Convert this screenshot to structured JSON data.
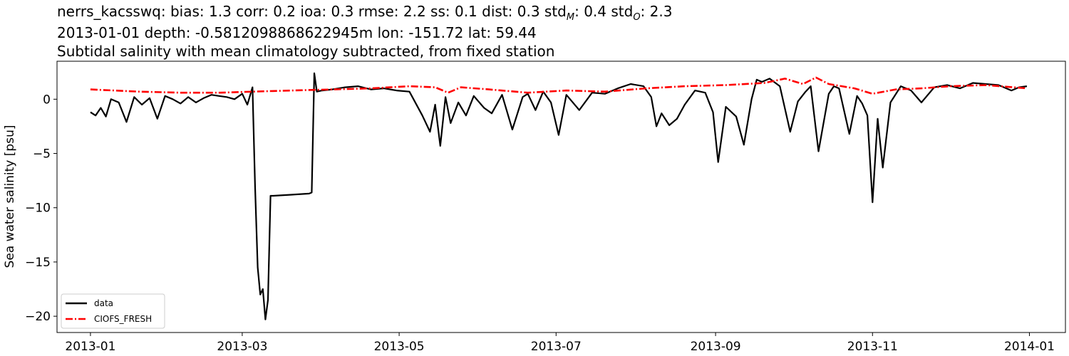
{
  "titles": {
    "line1_prefix": "nerrs_kacsswq: bias: 1.3  corr: 0.2  ioa: 0.3  rmse: 2.2  ss: 0.1  dist: 0.3  std",
    "line1_sub_m": "M",
    "line1_mid": ": 0.4  std",
    "line1_sub_o": "O",
    "line1_end": ": 2.3",
    "line2": "2013-01-01 depth: -0.5812098868622945m lon: -151.72 lat: 59.44",
    "line3": "Subtidal salinity with mean climatology subtracted, from fixed station"
  },
  "chart_data": {
    "type": "line",
    "ylabel": "Sea water salinity [psu]",
    "xlabel": "",
    "ylim": [
      -21.5,
      3.5
    ],
    "xlim": [
      "2012-12-19",
      "2014-01-15"
    ],
    "y_ticks": [
      0,
      -5,
      -10,
      -15,
      -20
    ],
    "y_tick_labels": [
      "0",
      "−5",
      "−10",
      "−15",
      "−20"
    ],
    "x_ticks": [
      "2013-01-01",
      "2013-03-01",
      "2013-05-01",
      "2013-07-01",
      "2013-09-01",
      "2013-11-01",
      "2014-01-01"
    ],
    "x_tick_labels": [
      "2013-01",
      "2013-03",
      "2013-05",
      "2013-07",
      "2013-09",
      "2013-11",
      "2014-01"
    ],
    "grid": false,
    "legend": "lower-left",
    "series": [
      {
        "name": "data",
        "color": "#000000",
        "style": "solid",
        "x": [
          "2013-01-01",
          "2013-01-03",
          "2013-01-05",
          "2013-01-07",
          "2013-01-09",
          "2013-01-12",
          "2013-01-15",
          "2013-01-18",
          "2013-01-21",
          "2013-01-24",
          "2013-01-27",
          "2013-01-30",
          "2013-02-02",
          "2013-02-05",
          "2013-02-08",
          "2013-02-11",
          "2013-02-14",
          "2013-02-17",
          "2013-02-20",
          "2013-02-23",
          "2013-02-26",
          "2013-03-01",
          "2013-03-03",
          "2013-03-05",
          "2013-03-06",
          "2013-03-07",
          "2013-03-08",
          "2013-03-09",
          "2013-03-10",
          "2013-03-11",
          "2013-03-12",
          "2013-03-13",
          "2013-03-20",
          "2013-03-27",
          "2013-03-28",
          "2013-03-29",
          "2013-03-30",
          "2013-04-01",
          "2013-04-05",
          "2013-04-10",
          "2013-04-15",
          "2013-04-20",
          "2013-04-25",
          "2013-04-30",
          "2013-05-05",
          "2013-05-10",
          "2013-05-13",
          "2013-05-15",
          "2013-05-17",
          "2013-05-19",
          "2013-05-21",
          "2013-05-24",
          "2013-05-27",
          "2013-05-30",
          "2013-06-03",
          "2013-06-06",
          "2013-06-10",
          "2013-06-14",
          "2013-06-18",
          "2013-06-20",
          "2013-06-23",
          "2013-06-26",
          "2013-06-29",
          "2013-07-02",
          "2013-07-05",
          "2013-07-10",
          "2013-07-15",
          "2013-07-20",
          "2013-07-25",
          "2013-07-30",
          "2013-08-04",
          "2013-08-07",
          "2013-08-09",
          "2013-08-11",
          "2013-08-14",
          "2013-08-17",
          "2013-08-20",
          "2013-08-24",
          "2013-08-28",
          "2013-08-31",
          "2013-09-02",
          "2013-09-05",
          "2013-09-09",
          "2013-09-12",
          "2013-09-15",
          "2013-09-17",
          "2013-09-19",
          "2013-09-22",
          "2013-09-26",
          "2013-09-30",
          "2013-10-03",
          "2013-10-06",
          "2013-10-08",
          "2013-10-11",
          "2013-10-15",
          "2013-10-17",
          "2013-10-19",
          "2013-10-23",
          "2013-10-26",
          "2013-10-28",
          "2013-10-30",
          "2013-11-01",
          "2013-11-03",
          "2013-11-05",
          "2013-11-08",
          "2013-11-12",
          "2013-11-16",
          "2013-11-20",
          "2013-11-25",
          "2013-11-30",
          "2013-12-05",
          "2013-12-10",
          "2013-12-15",
          "2013-12-20",
          "2013-12-25",
          "2013-12-28",
          "2013-12-31"
        ],
        "y": [
          -1.2,
          -1.5,
          -0.8,
          -1.6,
          0.0,
          -0.3,
          -2.1,
          0.2,
          -0.5,
          0.1,
          -1.8,
          0.3,
          0.0,
          -0.4,
          0.2,
          -0.3,
          0.1,
          0.4,
          0.3,
          0.2,
          0.0,
          0.5,
          -0.5,
          1.1,
          -8.0,
          -15.5,
          -18.0,
          -17.5,
          -20.3,
          -18.5,
          -8.9,
          -8.9,
          -8.8,
          -8.7,
          -8.6,
          2.4,
          0.7,
          0.8,
          0.9,
          1.1,
          1.2,
          0.9,
          1.0,
          0.8,
          0.7,
          -1.5,
          -3.0,
          -0.5,
          -4.3,
          0.2,
          -2.2,
          -0.3,
          -1.5,
          0.3,
          -0.8,
          -1.3,
          0.4,
          -2.8,
          0.2,
          0.5,
          -1.0,
          0.7,
          -0.3,
          -3.3,
          0.4,
          -1.0,
          0.6,
          0.5,
          1.0,
          1.4,
          1.2,
          0.2,
          -2.5,
          -1.3,
          -2.4,
          -1.8,
          -0.5,
          0.8,
          0.6,
          -1.2,
          -5.8,
          -0.7,
          -1.6,
          -4.2,
          0.0,
          1.8,
          1.6,
          1.9,
          1.2,
          -3.0,
          -0.2,
          0.7,
          1.2,
          -4.8,
          0.5,
          1.2,
          1.0,
          -3.2,
          0.3,
          -0.4,
          -1.5,
          -9.5,
          -1.8,
          -6.3,
          -0.3,
          1.2,
          0.8,
          -0.3,
          1.1,
          1.3,
          1.0,
          1.5,
          1.4,
          1.3,
          0.8,
          1.1,
          1.2
        ]
      },
      {
        "name": "CIOFS_FRESH",
        "color": "#ff0000",
        "style": "dash-dot",
        "x": [
          "2013-01-01",
          "2013-01-20",
          "2013-02-05",
          "2013-02-20",
          "2013-03-05",
          "2013-03-20",
          "2013-04-05",
          "2013-04-20",
          "2013-05-05",
          "2013-05-15",
          "2013-05-20",
          "2013-05-25",
          "2013-06-05",
          "2013-06-20",
          "2013-07-05",
          "2013-07-20",
          "2013-08-05",
          "2013-08-20",
          "2013-09-05",
          "2013-09-20",
          "2013-09-28",
          "2013-10-05",
          "2013-10-10",
          "2013-10-15",
          "2013-10-25",
          "2013-11-01",
          "2013-11-10",
          "2013-11-20",
          "2013-12-01",
          "2013-12-15",
          "2013-12-31"
        ],
        "y": [
          0.9,
          0.7,
          0.6,
          0.6,
          0.7,
          0.8,
          0.9,
          1.0,
          1.2,
          1.1,
          0.6,
          1.1,
          0.9,
          0.6,
          0.8,
          0.7,
          1.0,
          1.2,
          1.3,
          1.5,
          1.9,
          1.4,
          2.0,
          1.4,
          1.0,
          0.5,
          0.9,
          1.0,
          1.2,
          1.3,
          1.0
        ]
      }
    ]
  }
}
